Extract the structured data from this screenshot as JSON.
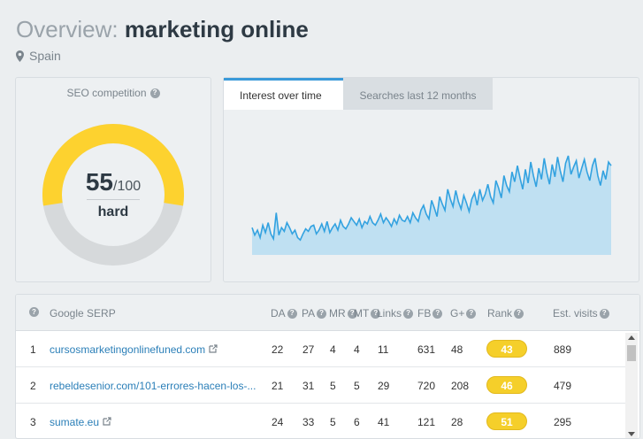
{
  "header": {
    "prefix": "Overview:",
    "keyword": "marketing online",
    "location": "Spain"
  },
  "seo": {
    "label": "SEO competition",
    "score": "55",
    "max": "/100",
    "level": "hard",
    "value": 55,
    "colors": {
      "filled": "#fdd22f",
      "empty": "#d6d9db"
    }
  },
  "tabs": {
    "interest": "Interest over time",
    "searches": "Searches last 12 months"
  },
  "chart_data": {
    "type": "area",
    "x": [
      0,
      1,
      2,
      3,
      4,
      5,
      6,
      7,
      8,
      9,
      10,
      11,
      12,
      13,
      14,
      15,
      16,
      17,
      18,
      19,
      20,
      21,
      22,
      23,
      24,
      25,
      26,
      27,
      28,
      29,
      30,
      31,
      32,
      33,
      34,
      35,
      36,
      37,
      38,
      39,
      40,
      41,
      42,
      43,
      44,
      45,
      46,
      47,
      48,
      49,
      50,
      51,
      52,
      53,
      54,
      55,
      56,
      57,
      58,
      59,
      60,
      61,
      62,
      63,
      64,
      65,
      66,
      67,
      68,
      69,
      70,
      71,
      72,
      73,
      74,
      75,
      76,
      77,
      78,
      79,
      80,
      81,
      82,
      83,
      84,
      85,
      86,
      87,
      88,
      89,
      90,
      91,
      92,
      93,
      94,
      95,
      96,
      97,
      98,
      99,
      100,
      101,
      102,
      103,
      104,
      105,
      106,
      107,
      108,
      109,
      110,
      111,
      112,
      113,
      114,
      115,
      116,
      117,
      118,
      119,
      120,
      121,
      122,
      123,
      124,
      125,
      126,
      127,
      128,
      129,
      130,
      131,
      132,
      133,
      134
    ],
    "values": [
      22,
      16,
      20,
      14,
      24,
      18,
      26,
      17,
      13,
      34,
      16,
      22,
      19,
      26,
      22,
      17,
      20,
      14,
      12,
      17,
      21,
      19,
      23,
      24,
      17,
      20,
      25,
      19,
      27,
      18,
      22,
      25,
      20,
      28,
      23,
      21,
      25,
      30,
      27,
      24,
      29,
      22,
      27,
      25,
      31,
      26,
      24,
      28,
      33,
      26,
      30,
      27,
      23,
      29,
      25,
      32,
      28,
      27,
      31,
      26,
      34,
      30,
      27,
      36,
      40,
      33,
      29,
      44,
      38,
      31,
      47,
      41,
      36,
      53,
      45,
      39,
      52,
      43,
      37,
      48,
      42,
      35,
      45,
      50,
      40,
      53,
      44,
      49,
      57,
      47,
      42,
      60,
      54,
      46,
      64,
      56,
      51,
      67,
      59,
      72,
      62,
      53,
      69,
      58,
      75,
      64,
      55,
      70,
      61,
      78,
      66,
      57,
      73,
      63,
      79,
      68,
      59,
      74,
      80,
      65,
      71,
      76,
      62,
      70,
      77,
      67,
      60,
      72,
      78,
      64,
      56,
      68,
      61,
      75,
      72
    ],
    "ylim": [
      0,
      100
    ],
    "fill": "#bfe0f2",
    "line": "#33a2e0"
  },
  "table": {
    "columns": {
      "serp": "Google SERP",
      "da": "DA",
      "pa": "PA",
      "mr": "MR",
      "mt": "MT",
      "links": "Links",
      "fb": "FB",
      "gplus": "G+",
      "rank": "Rank",
      "visits": "Est. visits"
    },
    "rows": [
      {
        "n": "1",
        "url": "cursosmarketingonlinefuned.com",
        "da": "22",
        "pa": "27",
        "mr": "4",
        "mt": "4",
        "links": "11",
        "fb": "631",
        "gplus": "48",
        "rank": "43",
        "visits": "889"
      },
      {
        "n": "2",
        "url": "rebeldesenior.com/101-errores-hacen-los-...",
        "da": "21",
        "pa": "31",
        "mr": "5",
        "mt": "5",
        "links": "29",
        "fb": "720",
        "gplus": "208",
        "rank": "46",
        "visits": "479"
      },
      {
        "n": "3",
        "url": "sumate.eu",
        "da": "24",
        "pa": "33",
        "mr": "5",
        "mt": "6",
        "links": "41",
        "fb": "121",
        "gplus": "28",
        "rank": "51",
        "visits": "295"
      }
    ]
  }
}
